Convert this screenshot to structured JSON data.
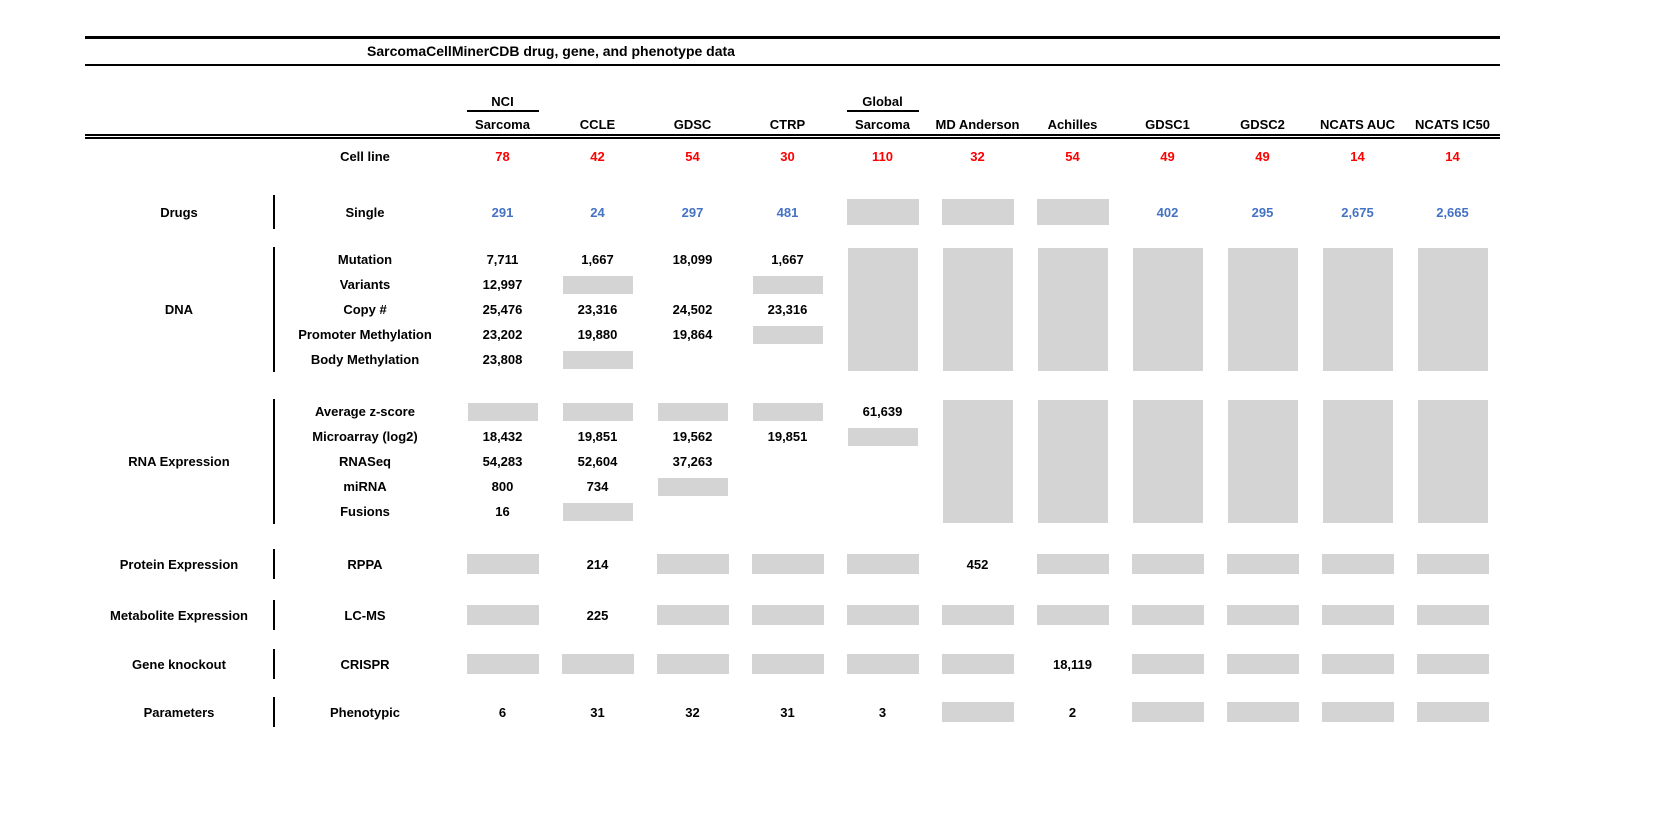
{
  "title": "SarcomaCellMinerCDB drug, gene, and phenotype data",
  "colors": {
    "red": "#ff0000",
    "blue": "#4472c4",
    "gray": "#d4d4d4"
  },
  "chart_data": {
    "type": "table",
    "title": "SarcomaCellMinerCDB drug, gene, and phenotype data",
    "column_headers": [
      {
        "top": "NCI",
        "bottom": "Sarcoma"
      },
      {
        "bottom": "CCLE"
      },
      {
        "bottom": "GDSC"
      },
      {
        "bottom": "CTRP"
      },
      {
        "top": "Global",
        "bottom": "Sarcoma"
      },
      {
        "bottom": "MD Anderson"
      },
      {
        "bottom": "Achilles"
      },
      {
        "bottom": "GDSC1"
      },
      {
        "bottom": "GDSC2"
      },
      {
        "bottom": "NCATS AUC"
      },
      {
        "bottom": "NCATS IC50"
      }
    ],
    "cell_line": {
      "label": "Cell line",
      "values": [
        "78",
        "42",
        "54",
        "30",
        "110",
        "32",
        "54",
        "49",
        "49",
        "14",
        "14"
      ]
    },
    "groups": [
      {
        "category": "Drugs",
        "value_color": "blue",
        "rows": [
          {
            "label": "Single",
            "cells": [
              "291",
              "24",
              "297",
              "481",
              "GRAY",
              "GRAY",
              "GRAY",
              "402",
              "295",
              "2,675",
              "2,665"
            ]
          }
        ]
      },
      {
        "category": "DNA",
        "tall_gray_columns": [
          4,
          5,
          6,
          7,
          8,
          9,
          10
        ],
        "rows": [
          {
            "label": "Mutation",
            "cells": [
              "7,711",
              "1,667",
              "18,099",
              "1,667",
              "",
              "",
              "",
              "",
              "",
              "",
              ""
            ]
          },
          {
            "label": "Variants",
            "cells": [
              "12,997",
              "GRAY",
              "",
              "GRAY",
              "",
              "",
              "",
              "",
              "",
              "",
              ""
            ]
          },
          {
            "label": "Copy #",
            "cells": [
              "25,476",
              "23,316",
              "24,502",
              "23,316",
              "",
              "",
              "",
              "",
              "",
              "",
              ""
            ]
          },
          {
            "label": "Promoter Methylation",
            "cells": [
              "23,202",
              "19,880",
              "19,864",
              "GRAY",
              "",
              "",
              "",
              "",
              "",
              "",
              ""
            ]
          },
          {
            "label": "Body Methylation",
            "cells": [
              "23,808",
              "GRAY",
              "",
              "",
              "",
              "",
              "",
              "",
              "",
              "",
              ""
            ]
          }
        ]
      },
      {
        "category": "RNA Expression",
        "tall_gray_columns": [
          5,
          6,
          7,
          8,
          9,
          10
        ],
        "rows": [
          {
            "label": "Average z-score",
            "cells": [
              "GRAY",
              "GRAY",
              "GRAY",
              "GRAY",
              "61,639",
              "",
              "",
              "",
              "",
              "",
              ""
            ]
          },
          {
            "label": "Microarray (log2)",
            "cells": [
              "18,432",
              "19,851",
              "19,562",
              "19,851",
              "GRAY",
              "",
              "",
              "",
              "",
              "",
              ""
            ]
          },
          {
            "label": "RNASeq",
            "cells": [
              "54,283",
              "52,604",
              "37,263",
              "",
              "",
              "",
              "",
              "",
              "",
              "",
              ""
            ]
          },
          {
            "label": "miRNA",
            "cells": [
              "800",
              "734",
              "GRAY",
              "",
              "",
              "",
              "",
              "",
              "",
              "",
              ""
            ]
          },
          {
            "label": "Fusions",
            "cells": [
              "16",
              "GRAY",
              "",
              "",
              "",
              "",
              "",
              "",
              "",
              "",
              ""
            ]
          }
        ]
      },
      {
        "category": "Protein Expression",
        "rows": [
          {
            "label": "RPPA",
            "cells": [
              "GRAY",
              "214",
              "GRAY",
              "GRAY",
              "GRAY",
              "452",
              "GRAY",
              "GRAY",
              "GRAY",
              "GRAY",
              "GRAY"
            ]
          }
        ]
      },
      {
        "category": "Metabolite Expression",
        "rows": [
          {
            "label": "LC-MS",
            "cells": [
              "GRAY",
              "225",
              "GRAY",
              "GRAY",
              "GRAY",
              "GRAY",
              "GRAY",
              "GRAY",
              "GRAY",
              "GRAY",
              "GRAY"
            ]
          }
        ]
      },
      {
        "category": "Gene knockout",
        "rows": [
          {
            "label": "CRISPR",
            "cells": [
              "GRAY",
              "GRAY",
              "GRAY",
              "GRAY",
              "GRAY",
              "GRAY",
              "18,119",
              "GRAY",
              "GRAY",
              "GRAY",
              "GRAY"
            ]
          }
        ]
      },
      {
        "category": "Parameters",
        "rows": [
          {
            "label": "Phenotypic",
            "cells": [
              "6",
              "31",
              "32",
              "31",
              "3",
              "GRAY",
              "2",
              "GRAY",
              "GRAY",
              "GRAY",
              "GRAY"
            ]
          }
        ]
      }
    ]
  }
}
